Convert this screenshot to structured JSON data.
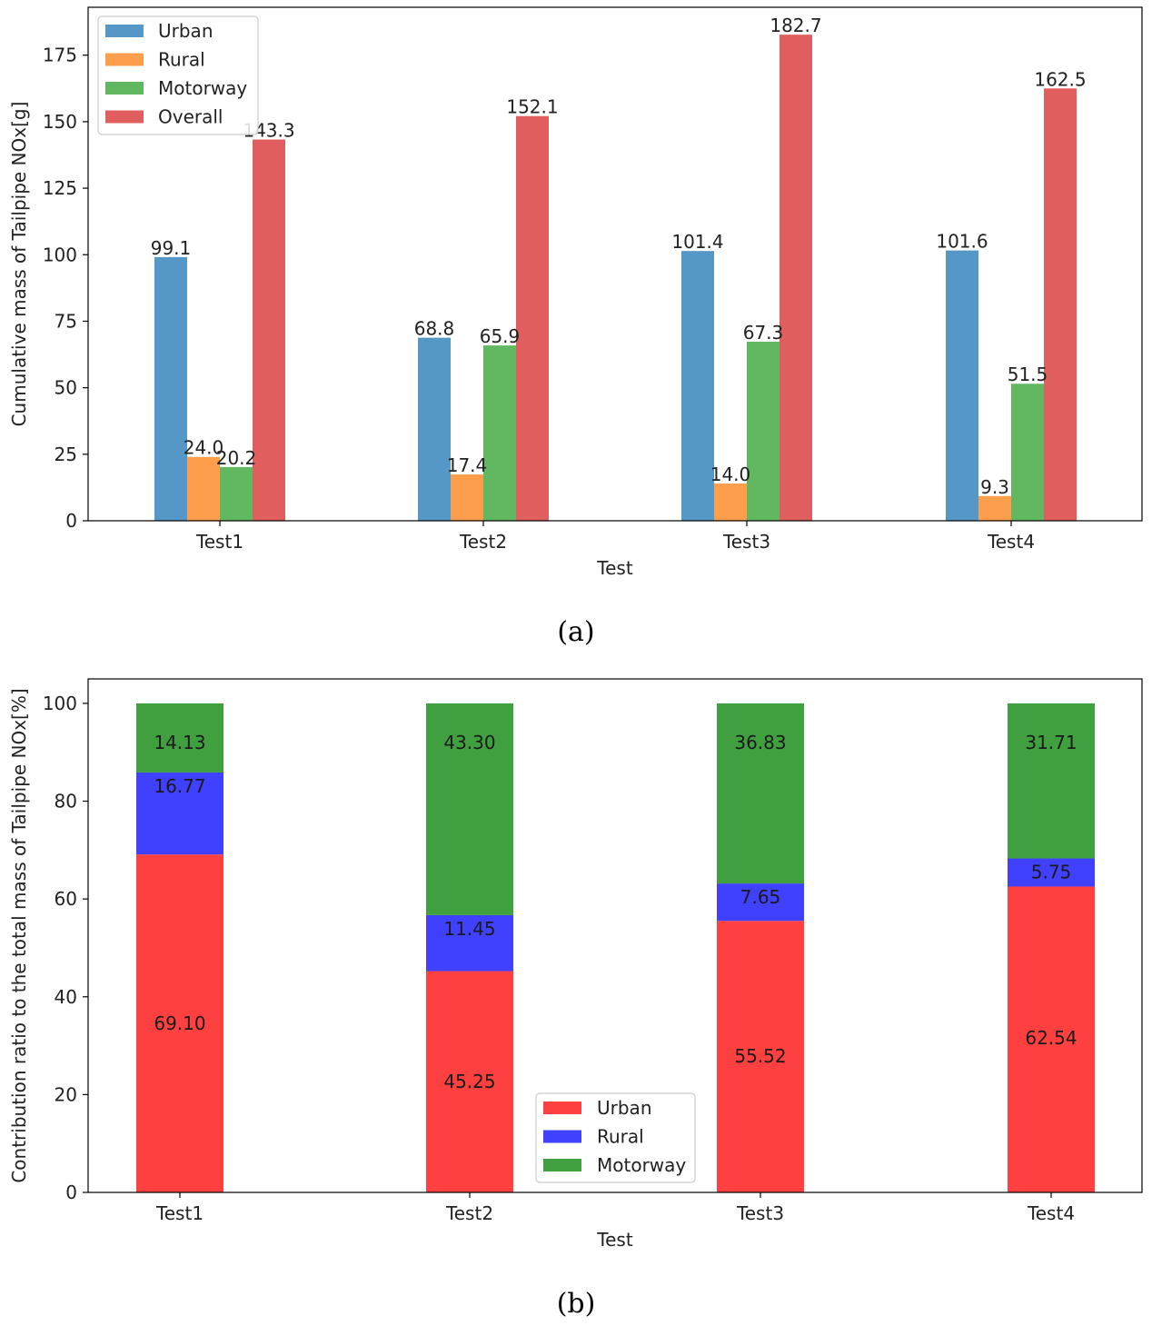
{
  "chart_data": [
    {
      "type": "bar",
      "panel_label": "(a)",
      "title": "",
      "xlabel": "Test",
      "ylabel": "Cumulative mass of Tailpipe NOx[g]",
      "categories": [
        "Test1",
        "Test2",
        "Test3",
        "Test4"
      ],
      "ylim": [
        0,
        193
      ],
      "yticks": [
        "0",
        "25",
        "50",
        "75",
        "100",
        "125",
        "150",
        "175"
      ],
      "grid": false,
      "legend_position": "top-left",
      "series": [
        {
          "name": "Urban",
          "color": "#5597c7",
          "values": [
            99.1,
            68.8,
            101.4,
            101.6
          ],
          "labels": [
            "99.1",
            "68.8",
            "101.4",
            "101.6"
          ]
        },
        {
          "name": "Rural",
          "color": "#fd9e4d",
          "values": [
            24.0,
            17.4,
            14.0,
            9.3
          ],
          "labels": [
            "24.0",
            "17.4",
            "14.0",
            "9.3"
          ]
        },
        {
          "name": "Motorway",
          "color": "#62b860",
          "values": [
            20.2,
            65.9,
            67.3,
            51.5
          ],
          "labels": [
            "20.2",
            "65.9",
            "67.3",
            "51.5"
          ]
        },
        {
          "name": "Overall",
          "color": "#e05e5e",
          "values": [
            143.3,
            152.1,
            182.7,
            162.5
          ],
          "labels": [
            "143.3",
            "152.1",
            "182.7",
            "162.5"
          ]
        }
      ]
    },
    {
      "type": "bar",
      "stacked": true,
      "panel_label": "(b)",
      "title": "",
      "xlabel": "Test",
      "ylabel": "Contribution ratio to the total mass of Tailpipe NOx[%]",
      "categories": [
        "Test1",
        "Test2",
        "Test3",
        "Test4"
      ],
      "ylim": [
        0,
        105
      ],
      "yticks": [
        "0",
        "20",
        "40",
        "60",
        "80",
        "100"
      ],
      "grid": false,
      "legend_position": "lower-center",
      "series": [
        {
          "name": "Urban",
          "color": "#ff4040",
          "values": [
            69.1,
            45.25,
            55.52,
            62.54
          ],
          "labels": [
            "69.10",
            "45.25",
            "55.52",
            "62.54"
          ]
        },
        {
          "name": "Rural",
          "color": "#4040ff",
          "values": [
            16.77,
            11.45,
            7.65,
            5.75
          ],
          "labels": [
            "16.77",
            "11.45",
            "7.65",
            "5.75"
          ]
        },
        {
          "name": "Motorway",
          "color": "#40a040",
          "values": [
            14.13,
            43.3,
            36.83,
            31.71
          ],
          "labels": [
            "14.13",
            "43.30",
            "36.83",
            "31.71"
          ]
        }
      ]
    }
  ]
}
